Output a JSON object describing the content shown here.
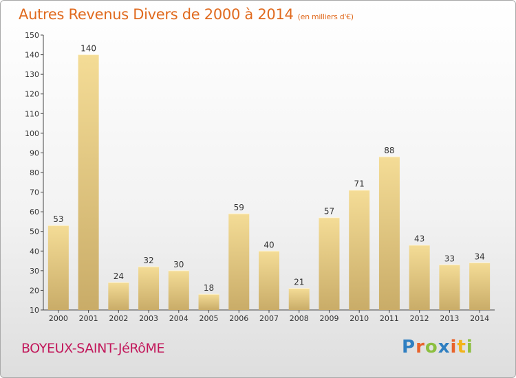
{
  "header": {
    "title": "Autres Revenus Divers de 2000 à 2014",
    "unit": "(en milliers d'€)"
  },
  "footer": {
    "town": "BOYEUX-SAINT-JéRôME"
  },
  "logo": {
    "letters": [
      {
        "ch": "P",
        "color": "#2f7fc1"
      },
      {
        "ch": "r",
        "color": "#e8632b"
      },
      {
        "ch": "o",
        "color": "#8cbf3f"
      },
      {
        "ch": "x",
        "color": "#2f7fc1"
      },
      {
        "ch": "i",
        "color": "#e8632b"
      },
      {
        "ch": "t",
        "color": "#f2b31b"
      },
      {
        "ch": "i",
        "color": "#8cbf3f"
      }
    ]
  },
  "chart_data": {
    "type": "bar",
    "title": "Autres Revenus Divers de 2000 à 2014",
    "categories": [
      "2000",
      "2001",
      "2002",
      "2003",
      "2004",
      "2005",
      "2006",
      "2007",
      "2008",
      "2009",
      "2010",
      "2011",
      "2012",
      "2013",
      "2014"
    ],
    "values": [
      53,
      140,
      24,
      32,
      30,
      18,
      59,
      40,
      21,
      57,
      71,
      88,
      43,
      33,
      34
    ],
    "ylim": [
      10,
      150
    ],
    "yticks": [
      10,
      20,
      30,
      40,
      50,
      60,
      70,
      80,
      90,
      100,
      110,
      120,
      130,
      140,
      150
    ],
    "grid": false,
    "legend": "none",
    "colors": {
      "bar_top": "#f4dc96",
      "bar_bottom": "#c9ac68",
      "axis": "#444444"
    }
  }
}
